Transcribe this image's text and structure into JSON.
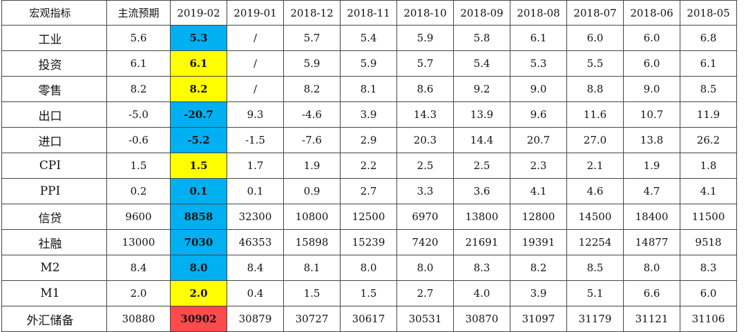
{
  "table": {
    "headers": [
      "宏观指标",
      "主流预期",
      "2019-02",
      "2019-01",
      "2018-12",
      "2018-11",
      "2018-10",
      "2018-09",
      "2018-08",
      "2018-07",
      "2018-06",
      "2018-05"
    ],
    "rows": [
      {
        "cells": [
          "工业",
          "5.6",
          "5.3",
          "/",
          "5.7",
          "5.4",
          "5.9",
          "5.8",
          "6.1",
          "6.0",
          "6.0",
          "6.8"
        ],
        "highlight": "#00b0f0"
      },
      {
        "cells": [
          "投资",
          "6.1",
          "6.1",
          "/",
          "5.9",
          "5.9",
          "5.7",
          "5.4",
          "5.3",
          "5.5",
          "6.0",
          "6.1"
        ],
        "highlight": "#ffff00"
      },
      {
        "cells": [
          "零售",
          "8.2",
          "8.2",
          "/",
          "8.2",
          "8.1",
          "8.6",
          "9.2",
          "9.0",
          "8.8",
          "9.0",
          "8.5"
        ],
        "highlight": "#ffff00"
      },
      {
        "cells": [
          "出口",
          "-5.0",
          "-20.7",
          "9.3",
          "-4.6",
          "3.9",
          "14.3",
          "13.9",
          "9.6",
          "11.6",
          "10.7",
          "11.9"
        ],
        "highlight": "#00b0f0"
      },
      {
        "cells": [
          "进口",
          "-0.6",
          "-5.2",
          "-1.5",
          "-7.6",
          "2.9",
          "20.3",
          "14.4",
          "20.7",
          "27.0",
          "13.8",
          "26.2"
        ],
        "highlight": "#00b0f0"
      },
      {
        "cells": [
          "CPI",
          "1.5",
          "1.5",
          "1.7",
          "1.9",
          "2.2",
          "2.5",
          "2.5",
          "2.3",
          "2.1",
          "1.9",
          "1.8"
        ],
        "highlight": "#ffff00"
      },
      {
        "cells": [
          "PPI",
          "0.2",
          "0.1",
          "0.1",
          "0.9",
          "2.7",
          "3.3",
          "3.6",
          "4.1",
          "4.6",
          "4.7",
          "4.1"
        ],
        "highlight": "#00b0f0"
      },
      {
        "cells": [
          "信贷",
          "9600",
          "8858",
          "32300",
          "10800",
          "12500",
          "6970",
          "13800",
          "12800",
          "14500",
          "18400",
          "11500"
        ],
        "highlight": "#00b0f0"
      },
      {
        "cells": [
          "社融",
          "13000",
          "7030",
          "46353",
          "15898",
          "15239",
          "7420",
          "21691",
          "19391",
          "12254",
          "14877",
          "9518"
        ],
        "highlight": "#00b0f0"
      },
      {
        "cells": [
          "M2",
          "8.4",
          "8.0",
          "8.4",
          "8.1",
          "8.0",
          "8.0",
          "8.3",
          "8.2",
          "8.5",
          "8.0",
          "8.3"
        ],
        "highlight": "#00b0f0"
      },
      {
        "cells": [
          "M1",
          "2.0",
          "2.0",
          "0.4",
          "1.5",
          "1.5",
          "2.7",
          "4.0",
          "3.9",
          "5.1",
          "6.6",
          "6.0"
        ],
        "highlight": "#ffff00"
      },
      {
        "cells": [
          "外汇储备",
          "30880",
          "30902",
          "30879",
          "30727",
          "30617",
          "30531",
          "30870",
          "31097",
          "31179",
          "31121",
          "31106"
        ],
        "highlight": "#ff4b4b"
      }
    ]
  }
}
